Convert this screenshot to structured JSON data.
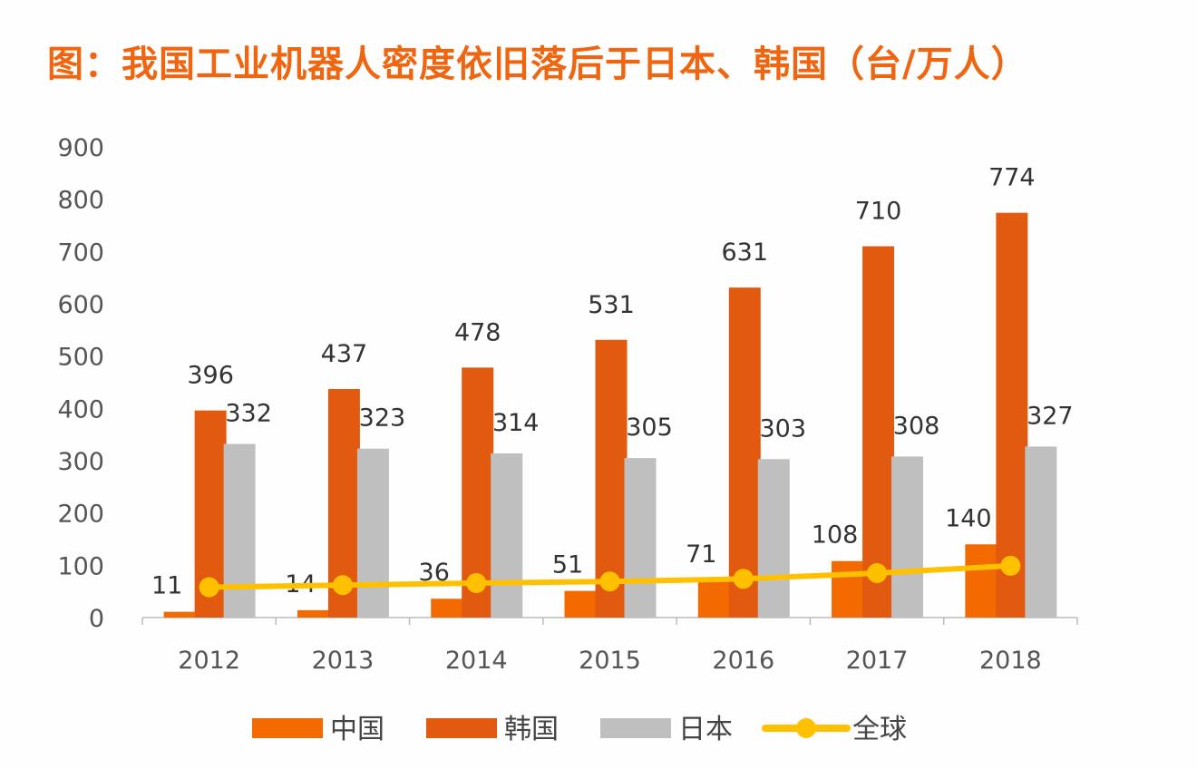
{
  "chart_data": {
    "type": "bar",
    "title": "图：我国工业机器人密度依旧落后于日本、韩国（台/万人）",
    "categories": [
      "2012",
      "2013",
      "2014",
      "2015",
      "2016",
      "2017",
      "2018"
    ],
    "ylim": [
      0,
      900
    ],
    "yticks": [
      0,
      100,
      200,
      300,
      400,
      500,
      600,
      700,
      800,
      900
    ],
    "grid": false,
    "legend_position": "bottom",
    "series": [
      {
        "name": "中国",
        "type": "bar",
        "color": "#f26a00",
        "values": [
          11,
          14,
          36,
          51,
          71,
          108,
          140
        ],
        "labels": true
      },
      {
        "name": "韩国",
        "type": "bar",
        "color": "#e25a10",
        "values": [
          396,
          437,
          478,
          531,
          631,
          710,
          774
        ],
        "labels": true
      },
      {
        "name": "日本",
        "type": "bar",
        "color": "#bfbfbf",
        "values": [
          332,
          323,
          314,
          305,
          303,
          308,
          327
        ],
        "labels": true
      },
      {
        "name": "全球",
        "type": "line",
        "color": "#ffc000",
        "values": [
          58,
          62,
          66,
          69,
          74,
          85,
          99
        ],
        "labels": false
      }
    ]
  }
}
